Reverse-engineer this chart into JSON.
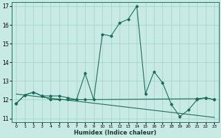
{
  "xlabel": "Humidex (Indice chaleur)",
  "xlim": [
    -0.5,
    23.5
  ],
  "ylim": [
    10.8,
    17.2
  ],
  "yticks": [
    11,
    12,
    13,
    14,
    15,
    16,
    17
  ],
  "xticks": [
    0,
    1,
    2,
    3,
    4,
    5,
    6,
    7,
    8,
    9,
    10,
    11,
    12,
    13,
    14,
    15,
    16,
    17,
    18,
    19,
    20,
    21,
    22,
    23
  ],
  "bg_color": "#c8eae4",
  "grid_color": "#a0cfc8",
  "line_color": "#1a6b5a",
  "lines": [
    {
      "x": [
        0,
        1,
        2,
        3,
        4,
        5,
        6,
        7,
        8,
        9,
        10,
        11,
        12,
        13,
        14,
        15,
        16,
        17,
        18,
        19,
        20,
        21,
        22,
        23
      ],
      "y": [
        11.8,
        12.25,
        12.4,
        12.2,
        12.2,
        12.2,
        12.1,
        12.0,
        13.4,
        12.0,
        15.5,
        15.4,
        16.1,
        16.3,
        17.0,
        12.3,
        13.5,
        12.9,
        11.75,
        11.1,
        11.45,
        12.0,
        12.1,
        12.0
      ],
      "marker": true,
      "linestyle": "-"
    },
    {
      "x": [
        0,
        23
      ],
      "y": [
        12.3,
        11.05
      ],
      "marker": false,
      "linestyle": "-"
    },
    {
      "x": [
        0,
        1,
        2,
        3,
        4,
        5,
        6,
        7,
        8,
        21,
        22,
        23
      ],
      "y": [
        11.8,
        12.25,
        12.4,
        12.2,
        12.0,
        12.0,
        12.0,
        12.0,
        12.0,
        12.05,
        12.1,
        12.0
      ],
      "marker": true,
      "linestyle": "-"
    }
  ],
  "figsize": [
    3.2,
    2.0
  ],
  "dpi": 100
}
